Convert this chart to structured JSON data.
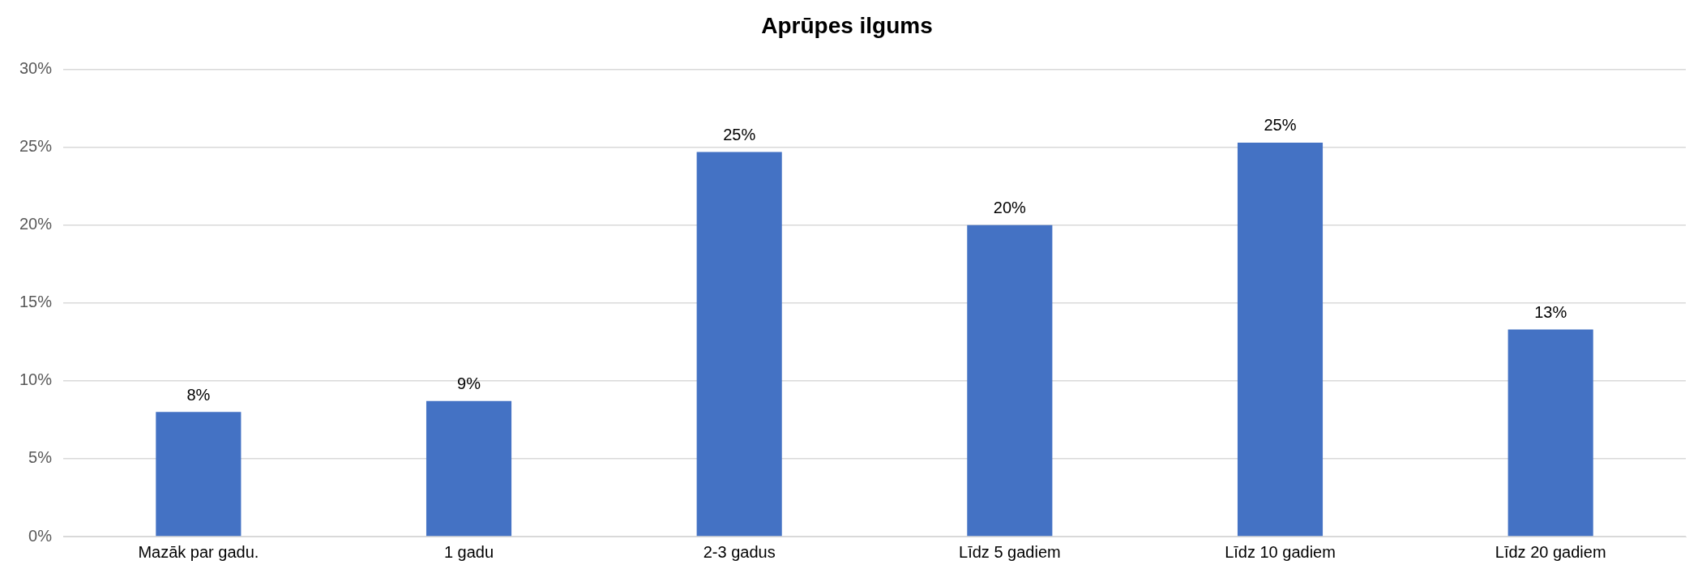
{
  "chart_data": {
    "type": "bar",
    "title": "Aprūpes ilgums",
    "categories": [
      "Mazāk par gadu.",
      "1 gadu",
      "2-3 gadus",
      "Līdz 5 gadiem",
      "Līdz 10 gadiem",
      "Līdz 20 gadiem"
    ],
    "values": [
      8,
      8.7,
      24.7,
      20,
      25.3,
      13.3
    ],
    "value_labels": [
      "8%",
      "9%",
      "25%",
      "20%",
      "25%",
      "13%"
    ],
    "color": "#4472c4",
    "ylim": [
      0,
      30
    ],
    "yticks": [
      {
        "value": 0,
        "label": "0%"
      },
      {
        "value": 5,
        "label": "5%"
      },
      {
        "value": 10,
        "label": "10%"
      },
      {
        "value": 15,
        "label": "15%"
      },
      {
        "value": 20,
        "label": "20%"
      },
      {
        "value": 25,
        "label": "25%"
      },
      {
        "value": 30,
        "label": "30%"
      }
    ],
    "grid": "y",
    "legend": false
  }
}
